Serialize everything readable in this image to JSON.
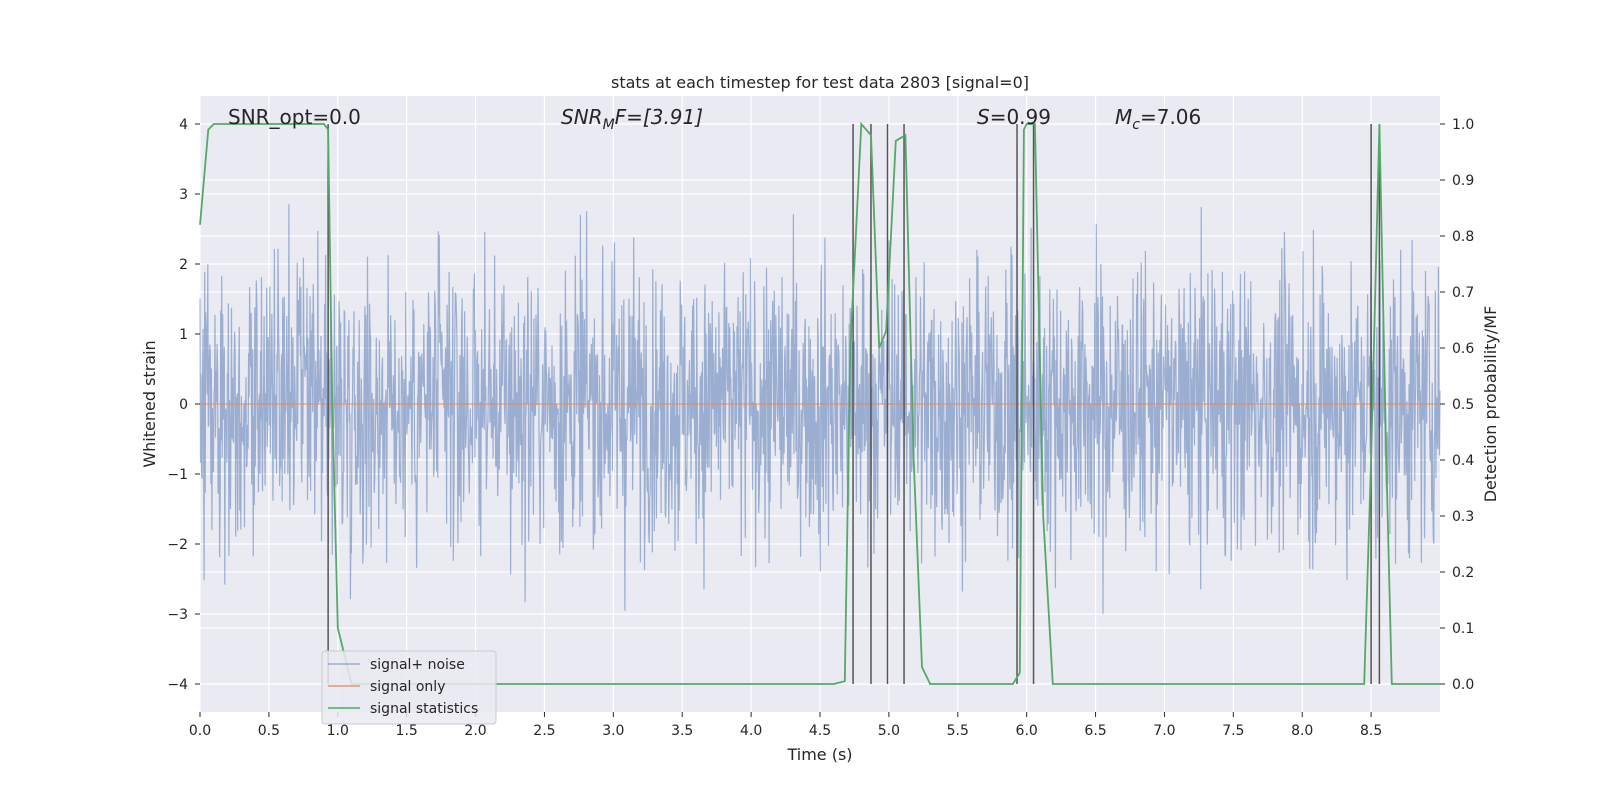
{
  "chart_data": {
    "type": "line",
    "title": "stats at each timestep for test data 2803 [signal=0]",
    "xlabel": "Time (s)",
    "ylabel_left": "Whitened strain",
    "ylabel_right": "Detection probability/MF",
    "xlim": [
      0,
      9
    ],
    "ylim_left": [
      -4.4,
      4.4
    ],
    "ylim_right": [
      -0.05,
      1.05
    ],
    "x_ticks": [
      0.0,
      0.5,
      1.0,
      1.5,
      2.0,
      2.5,
      3.0,
      3.5,
      4.0,
      4.5,
      5.0,
      5.5,
      6.0,
      6.5,
      7.0,
      7.5,
      8.0,
      8.5
    ],
    "x_tick_labels": [
      "0.0",
      "0.5",
      "1.0",
      "1.5",
      "2.0",
      "2.5",
      "3.0",
      "3.5",
      "4.0",
      "4.5",
      "5.0",
      "5.5",
      "6.0",
      "6.5",
      "7.0",
      "7.5",
      "8.0",
      "8.5"
    ],
    "y_left_ticks": [
      -4,
      -3,
      -2,
      -1,
      0,
      1,
      2,
      3,
      4
    ],
    "y_left_tick_labels": [
      "−4",
      "−3",
      "−2",
      "−1",
      "0",
      "1",
      "2",
      "3",
      "4"
    ],
    "y_right_ticks": [
      0.0,
      0.1,
      0.2,
      0.3,
      0.4,
      0.5,
      0.6,
      0.7,
      0.8,
      0.9,
      1.0
    ],
    "y_right_tick_labels": [
      "0.0",
      "0.1",
      "0.2",
      "0.3",
      "0.4",
      "0.5",
      "0.6",
      "0.7",
      "0.8",
      "0.9",
      "1.0"
    ],
    "grid": true,
    "annotations": {
      "snr_opt": "SNR_opt=0.0",
      "snr_mf_italic": "SNR",
      "snr_mf_sub": "M",
      "snr_mf_rest": "F=[3.91]",
      "s_italic": "S",
      "s_rest": "=0.99",
      "mc_italic": "M",
      "mc_sub": "c",
      "mc_rest": "=7.06"
    },
    "legend": {
      "position": "lower-left",
      "entries": [
        "signal+ noise",
        "signal only",
        "signal statistics"
      ]
    },
    "series": [
      {
        "name": "signal+ noise",
        "axis": "left",
        "color": "#4c72b0",
        "kind": "noise",
        "x_range": [
          0,
          9
        ],
        "amplitude_envelope": 1.6,
        "peak_abs_max": 3.9
      },
      {
        "name": "signal only",
        "axis": "left",
        "color": "#dd8452",
        "x": [
          0,
          9
        ],
        "y": [
          0,
          0
        ]
      },
      {
        "name": "signal statistics",
        "axis": "right",
        "color": "#55a868",
        "x": [
          0.0,
          0.06,
          0.1,
          0.2,
          0.4,
          0.6,
          0.8,
          0.9,
          0.93,
          0.96,
          1.0,
          1.1,
          1.2,
          4.6,
          4.68,
          4.72,
          4.8,
          4.87,
          4.93,
          4.98,
          5.05,
          5.12,
          5.18,
          5.24,
          5.3,
          5.35,
          5.9,
          5.95,
          5.98,
          6.0,
          6.06,
          6.12,
          6.19,
          8.45,
          8.5,
          8.56,
          8.61,
          8.65,
          9.0
        ],
        "y": [
          0.82,
          0.99,
          1.0,
          1.0,
          1.0,
          1.0,
          1.0,
          1.0,
          0.99,
          0.5,
          0.1,
          0.0,
          0.0,
          0.0,
          0.005,
          0.6,
          1.0,
          0.98,
          0.6,
          0.63,
          0.97,
          0.98,
          0.4,
          0.03,
          0.0,
          0.0,
          0.0,
          0.02,
          0.99,
          1.0,
          1.0,
          0.3,
          0.0,
          0.0,
          0.4,
          1.0,
          0.4,
          0.0,
          0.0
        ]
      }
    ],
    "vertical_markers": {
      "color": "#555555",
      "x": [
        0.93,
        4.74,
        4.87,
        4.99,
        5.11,
        5.93,
        6.05,
        8.5,
        8.56
      ],
      "y_from_right": 0.0,
      "y_to_right": 1.0
    }
  }
}
